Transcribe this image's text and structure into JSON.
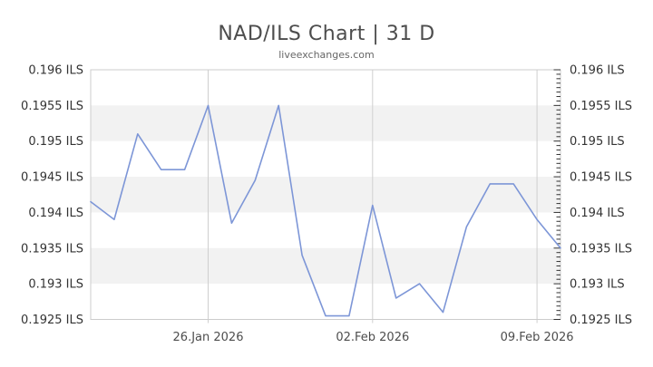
{
  "header": {
    "title": "NAD/ILS Chart | 31 D",
    "subtitle": "liveexchanges.com"
  },
  "colors": {
    "line": "#7d96d7",
    "band": "#f2f2f2",
    "grid_line": "#cfcfcf",
    "plot_border": "#cccccc",
    "tick": "#333333",
    "title_text": "#4d4d4d",
    "subtitle_text": "#666666",
    "y_label_text": "#333333",
    "x_label_text": "#4d4d4d",
    "background": "#ffffff"
  },
  "chart_data": {
    "type": "line",
    "title": "NAD/ILS Chart | 31 D",
    "subtitle": "liveexchanges.com",
    "unit": "ILS",
    "period_days": 31,
    "legend": "none",
    "ylim": [
      0.1925,
      0.196
    ],
    "y_ticks": [
      0.196,
      0.1955,
      0.195,
      0.1945,
      0.194,
      0.1935,
      0.193,
      0.1925
    ],
    "y_tick_labels": [
      "0.196 ILS",
      "0.1955 ILS",
      "0.195 ILS",
      "0.1945 ILS",
      "0.194 ILS",
      "0.1935 ILS",
      "0.193 ILS",
      "0.1925 ILS"
    ],
    "x_ticks": [
      {
        "label": "26.Jan 2026",
        "index": 5
      },
      {
        "label": "02.Feb 2026",
        "index": 12
      },
      {
        "label": "09.Feb 2026",
        "index": 19
      }
    ],
    "series": [
      {
        "name": "NAD/ILS",
        "values": [
          0.19415,
          0.1939,
          0.1951,
          0.1946,
          0.1946,
          0.1955,
          0.19385,
          0.19445,
          0.1955,
          0.1934,
          0.19255,
          0.19255,
          0.1941,
          0.1928,
          0.193,
          0.1926,
          0.1938,
          0.1944,
          0.1944,
          0.1939,
          0.1935
        ]
      }
    ],
    "grid": {
      "horizontal_zebra_bands": true,
      "vertical_lines_at_x_ticks": true,
      "minor_ticks_right_edge": true
    }
  }
}
